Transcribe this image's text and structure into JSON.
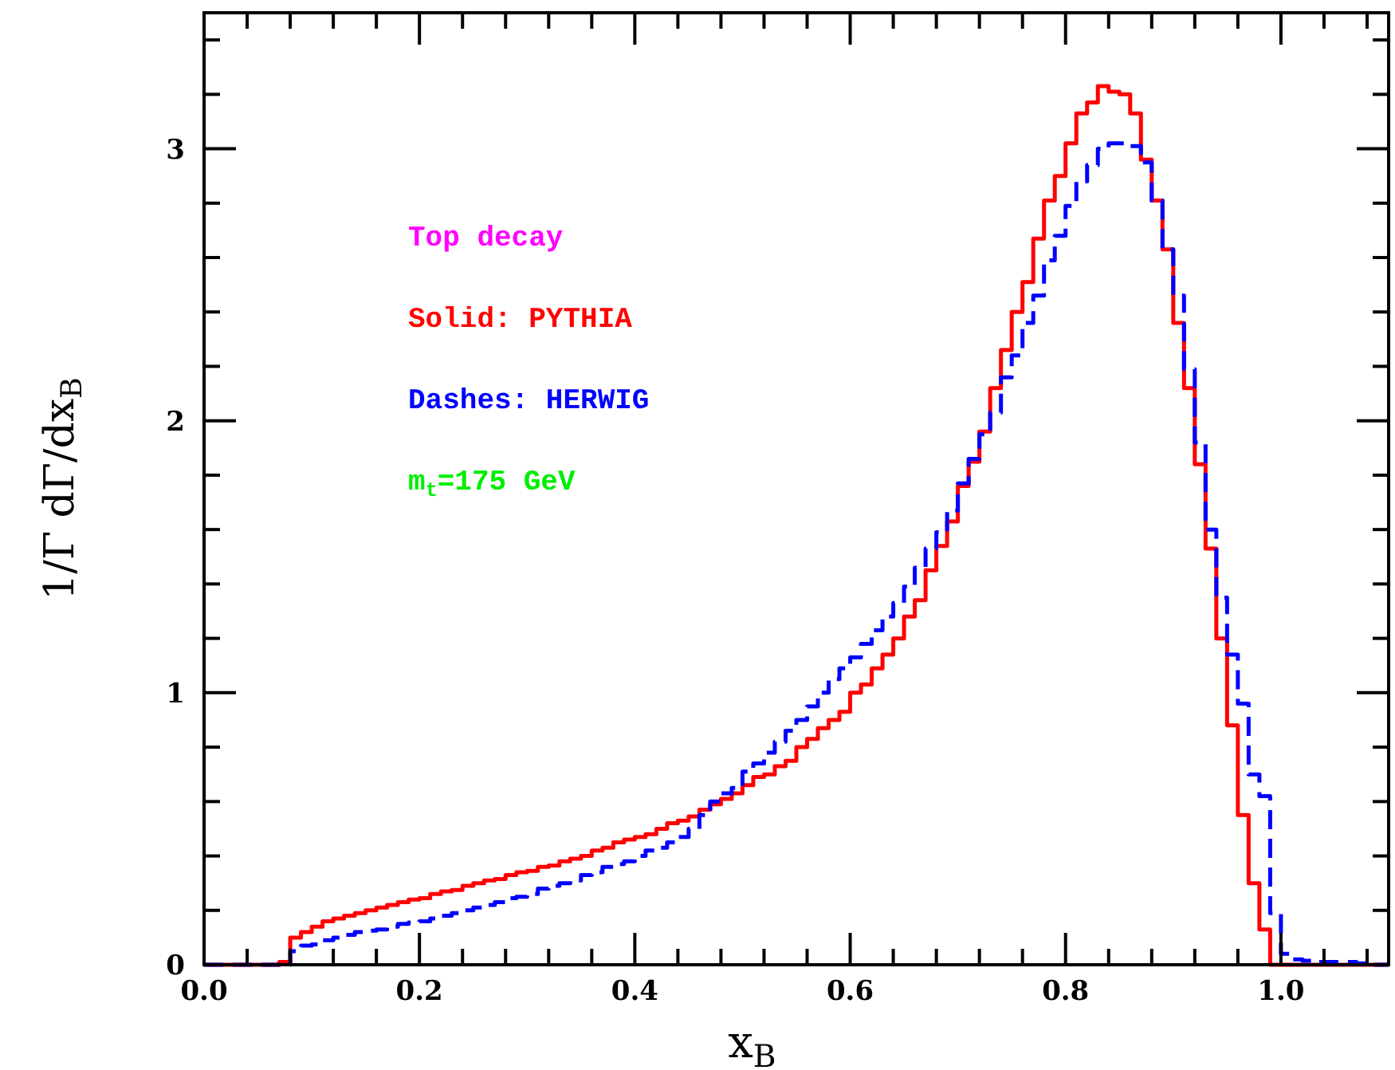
{
  "chart_data": {
    "type": "histogram",
    "xlabel": "x$_{B}$",
    "ylabel": "1/Γ dΓ/dx$_{B}$",
    "annotations": [
      "Top decay",
      "Solid: PYTHIA",
      "Dashes: HERWIG",
      "m$_{t}$=175 GeV"
    ],
    "bins": [
      0,
      0.01,
      0.02,
      0.03,
      0.04,
      0.05,
      0.06,
      0.07,
      0.08,
      0.09,
      0.1,
      0.11,
      0.12,
      0.13,
      0.14,
      0.15,
      0.16,
      0.17,
      0.18,
      0.19,
      0.2,
      0.21,
      0.22,
      0.23,
      0.24,
      0.25,
      0.26,
      0.27,
      0.28,
      0.29,
      0.3,
      0.31,
      0.32,
      0.33,
      0.34,
      0.35,
      0.36,
      0.37,
      0.38,
      0.39,
      0.4,
      0.41,
      0.42,
      0.43,
      0.44,
      0.45,
      0.46,
      0.47,
      0.48,
      0.49,
      0.5,
      0.51,
      0.52,
      0.53,
      0.54,
      0.55,
      0.56,
      0.57,
      0.58,
      0.59,
      0.6,
      0.61,
      0.62,
      0.63,
      0.64,
      0.65,
      0.66,
      0.67,
      0.68,
      0.69,
      0.7,
      0.71,
      0.72,
      0.73,
      0.74,
      0.75,
      0.76,
      0.77,
      0.78,
      0.79,
      0.8,
      0.81,
      0.82,
      0.83,
      0.84,
      0.85,
      0.86,
      0.87,
      0.88,
      0.89,
      0.9,
      0.91,
      0.92,
      0.93,
      0.94,
      0.95,
      0.96,
      0.97,
      0.98,
      0.99,
      1.0,
      1.01,
      1.02,
      1.03,
      1.04,
      1.05,
      1.06,
      1.07,
      1.08,
      1.09,
      1.1
    ],
    "series": [
      {
        "color": "#ff0000",
        "line_style": "solid",
        "values": [
          0,
          0,
          0,
          0,
          0,
          0,
          0,
          0.01,
          0.1,
          0.12,
          0.14,
          0.16,
          0.17,
          0.18,
          0.19,
          0.2,
          0.21,
          0.22,
          0.23,
          0.24,
          0.245,
          0.26,
          0.27,
          0.275,
          0.29,
          0.3,
          0.31,
          0.315,
          0.33,
          0.34,
          0.345,
          0.36,
          0.365,
          0.38,
          0.39,
          0.4,
          0.42,
          0.43,
          0.45,
          0.46,
          0.47,
          0.48,
          0.5,
          0.52,
          0.53,
          0.545,
          0.57,
          0.59,
          0.61,
          0.63,
          0.66,
          0.69,
          0.7,
          0.73,
          0.75,
          0.8,
          0.83,
          0.87,
          0.9,
          0.93,
          1.0,
          1.03,
          1.09,
          1.14,
          1.2,
          1.28,
          1.34,
          1.45,
          1.54,
          1.63,
          1.76,
          1.85,
          1.96,
          2.12,
          2.26,
          2.4,
          2.51,
          2.67,
          2.81,
          2.9,
          3.02,
          3.13,
          3.17,
          3.23,
          3.21,
          3.2,
          3.13,
          2.96,
          2.81,
          2.63,
          2.36,
          2.12,
          1.84,
          1.53,
          1.2,
          0.88,
          0.55,
          0.3,
          0.13,
          0,
          0,
          0,
          0,
          0,
          0,
          0,
          0,
          0,
          0,
          0
        ]
      },
      {
        "color": "#0000ff",
        "line_style": "dashed",
        "values": [
          0,
          0,
          0,
          0,
          0,
          0,
          0,
          0,
          0.05,
          0.07,
          0.075,
          0.09,
          0.1,
          0.11,
          0.12,
          0.125,
          0.13,
          0.14,
          0.15,
          0.155,
          0.16,
          0.17,
          0.18,
          0.19,
          0.2,
          0.21,
          0.22,
          0.23,
          0.245,
          0.25,
          0.26,
          0.28,
          0.29,
          0.3,
          0.31,
          0.33,
          0.34,
          0.36,
          0.37,
          0.38,
          0.4,
          0.42,
          0.43,
          0.45,
          0.47,
          0.5,
          0.55,
          0.6,
          0.63,
          0.65,
          0.71,
          0.74,
          0.78,
          0.82,
          0.86,
          0.9,
          0.95,
          1.0,
          1.05,
          1.09,
          1.13,
          1.18,
          1.23,
          1.28,
          1.33,
          1.39,
          1.46,
          1.53,
          1.59,
          1.67,
          1.77,
          1.86,
          1.95,
          2.03,
          2.16,
          2.24,
          2.36,
          2.46,
          2.59,
          2.68,
          2.79,
          2.88,
          2.94,
          3.0,
          3.02,
          3.02,
          3.01,
          2.95,
          2.81,
          2.63,
          2.46,
          2.19,
          1.92,
          1.6,
          1.35,
          1.14,
          0.96,
          0.7,
          0.62,
          0.19,
          0.04,
          0.02,
          0.015,
          0.01,
          0.01,
          0.01,
          0.01,
          0.005,
          0,
          0
        ]
      }
    ],
    "xlim": [
      0,
      1.1
    ],
    "ylim": [
      0,
      3.5
    ],
    "xticks": [
      {
        "value": 0,
        "label": "0.0"
      },
      {
        "value": 0.04,
        "label": null
      },
      {
        "value": 0.08,
        "label": null
      },
      {
        "value": 0.12,
        "label": null
      },
      {
        "value": 0.16,
        "label": null
      },
      {
        "value": 0.2,
        "label": "0.2"
      },
      {
        "value": 0.24,
        "label": null
      },
      {
        "value": 0.28,
        "label": null
      },
      {
        "value": 0.32,
        "label": null
      },
      {
        "value": 0.36,
        "label": null
      },
      {
        "value": 0.4,
        "label": "0.4"
      },
      {
        "value": 0.44,
        "label": null
      },
      {
        "value": 0.48,
        "label": null
      },
      {
        "value": 0.52,
        "label": null
      },
      {
        "value": 0.56,
        "label": null
      },
      {
        "value": 0.6,
        "label": "0.6"
      },
      {
        "value": 0.64,
        "label": null
      },
      {
        "value": 0.68,
        "label": null
      },
      {
        "value": 0.72,
        "label": null
      },
      {
        "value": 0.76,
        "label": null
      },
      {
        "value": 0.8,
        "label": "0.8"
      },
      {
        "value": 0.84,
        "label": null
      },
      {
        "value": 0.88,
        "label": null
      },
      {
        "value": 0.92,
        "label": null
      },
      {
        "value": 0.96,
        "label": null
      },
      {
        "value": 1.0,
        "label": "1.0"
      },
      {
        "value": 1.04,
        "label": null
      },
      {
        "value": 1.08,
        "label": null
      }
    ],
    "yticks": [
      0,
      {
        "value": 0.2,
        "label": null
      },
      {
        "value": 0.4,
        "label": null
      },
      {
        "value": 0.6,
        "label": null
      },
      {
        "value": 0.8,
        "label": null
      },
      1,
      {
        "value": 1.2,
        "label": null
      },
      {
        "value": 1.4,
        "label": null
      },
      {
        "value": 1.6,
        "label": null
      },
      {
        "value": 1.8,
        "label": null
      },
      2,
      {
        "value": 2.2,
        "label": null
      },
      {
        "value": 2.4,
        "label": null
      },
      {
        "value": 2.6,
        "label": null
      },
      {
        "value": 2.8,
        "label": null
      },
      3,
      {
        "value": 3.2,
        "label": null
      },
      {
        "value": 3.4,
        "label": null
      }
    ],
    "grid": false
  }
}
